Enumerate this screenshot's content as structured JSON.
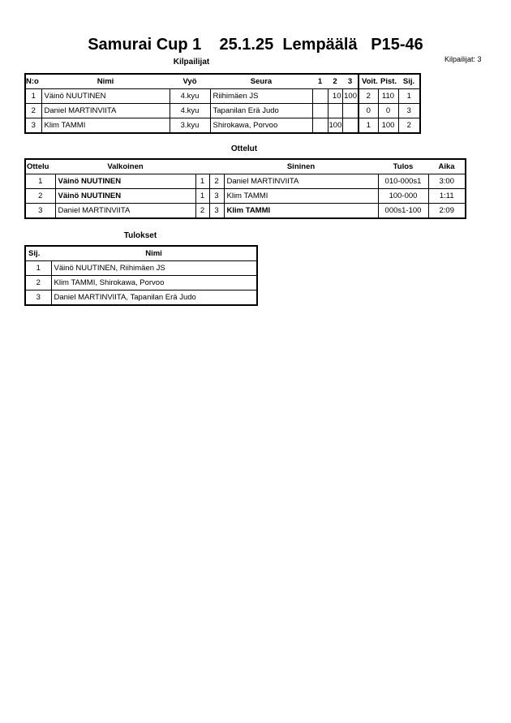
{
  "title": "Samurai Cup 1    25.1.25  Lempäälä   P15-46",
  "competitors_count": "Kilpailijat: 3",
  "competitors": {
    "heading": "Kilpailijat",
    "columns": [
      "N:o",
      "Nimi",
      "Vyö",
      "Seura",
      "1",
      "2",
      "3",
      "Voit.",
      "Pist.",
      "Sij."
    ],
    "rows": [
      [
        "1",
        "Väinö NUUTINEN",
        "4.kyu",
        "Riihimäen JS",
        "",
        "10",
        "100",
        "2",
        "110",
        "1"
      ],
      [
        "2",
        "Daniel MARTINVIITA",
        "4.kyu",
        "Tapanilan Erä Judo",
        "",
        "",
        "",
        "0",
        "0",
        "3"
      ],
      [
        "3",
        "Klim TAMMI",
        "3.kyu",
        "Shirokawa, Porvoo",
        "",
        "100",
        "",
        "1",
        "100",
        "2"
      ]
    ]
  },
  "matches": {
    "heading": "Ottelut",
    "columns": [
      "Ottelu",
      "Valkoinen",
      "",
      "",
      "Sininen",
      "Tulos",
      "Aika"
    ],
    "rows": [
      [
        "1",
        "Väinö NUUTINEN",
        "1",
        "2",
        "Daniel MARTINVIITA",
        "010-000s1",
        "3:00"
      ],
      [
        "2",
        "Väinö NUUTINEN",
        "1",
        "3",
        "Klim TAMMI",
        "100-000",
        "1:11"
      ],
      [
        "3",
        "Daniel MARTINVIITA",
        "2",
        "3",
        "Klim TAMMI",
        "000s1-100",
        "2:09"
      ]
    ],
    "winner_side": [
      "white",
      "white",
      "blue"
    ]
  },
  "results": {
    "heading": "Tulokset",
    "columns": [
      "Sij.",
      "Nimi"
    ],
    "rows": [
      [
        "1",
        "Väinö NUUTINEN, Riihimäen JS"
      ],
      [
        "2",
        "Klim TAMMI, Shirokawa, Porvoo"
      ],
      [
        "3",
        "Daniel MARTINVIITA, Tapanilan Erä Judo"
      ]
    ]
  }
}
